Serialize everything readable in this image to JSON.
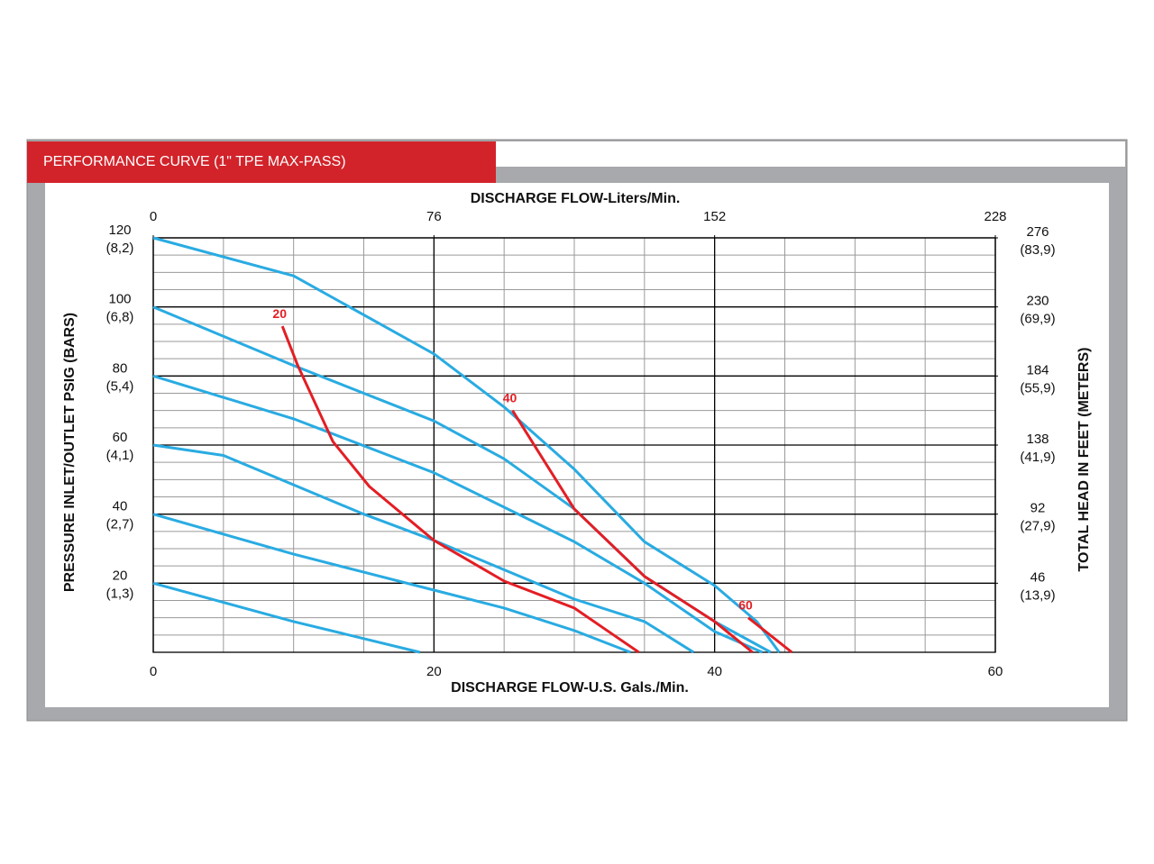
{
  "chart_data": {
    "type": "line",
    "title": "PERFORMANCE CURVE (1\" TPE MAX-PASS)",
    "x_label": "DISCHARGE FLOW-U.S. Gals./Min.",
    "x2_label": "DISCHARGE FLOW-Liters/Min.",
    "y_label": "PRESSURE INLET/OUTLET PSIG (BARS)",
    "y2_label": "TOTAL HEAD IN FEET (METERS)",
    "xlim": [
      0,
      60
    ],
    "xticks": [
      0,
      20,
      40,
      60
    ],
    "x_minor_ticks": [
      5,
      10,
      15,
      25,
      30,
      35,
      45,
      50,
      55
    ],
    "x2lim": [
      0,
      228
    ],
    "x2ticks": [
      0,
      76,
      152,
      228
    ],
    "ylim": [
      0,
      120
    ],
    "yticks": [
      {
        "value": 20,
        "label": "20",
        "metric_label": "(1,3)"
      },
      {
        "value": 40,
        "label": "40",
        "metric_label": "(2,7)"
      },
      {
        "value": 60,
        "label": "60",
        "metric_label": "(4,1)"
      },
      {
        "value": 80,
        "label": "80",
        "metric_label": "(5,4)"
      },
      {
        "value": 100,
        "label": "100",
        "metric_label": "(6,8)"
      },
      {
        "value": 120,
        "label": "120",
        "metric_label": "(8,2)"
      }
    ],
    "y_minor_ticks": [
      5,
      10,
      15,
      25,
      30,
      35,
      45,
      50,
      55,
      65,
      70,
      75,
      85,
      90,
      95,
      105,
      110,
      115
    ],
    "y2lim": [
      0,
      276
    ],
    "y2ticks": [
      {
        "value": 46,
        "label": "46",
        "metric_label": "(13,9)"
      },
      {
        "value": 92,
        "label": "92",
        "metric_label": "(27,9)"
      },
      {
        "value": 138,
        "label": "138",
        "metric_label": "(41,9)"
      },
      {
        "value": 184,
        "label": "184",
        "metric_label": "(55,9)"
      },
      {
        "value": 230,
        "label": "230",
        "metric_label": "(69,9)"
      },
      {
        "value": 276,
        "label": "276",
        "metric_label": "(83,9)"
      }
    ],
    "grid": true,
    "series": [
      {
        "color": "#29abe2",
        "x": [
          0,
          10,
          20,
          25,
          30,
          35,
          40,
          43,
          44.6
        ],
        "values": [
          120,
          109,
          86.4,
          71,
          53,
          32,
          19.3,
          8.9,
          0
        ]
      },
      {
        "color": "#29abe2",
        "x": [
          0,
          10,
          20,
          25,
          30,
          35,
          40,
          44
        ],
        "values": [
          100,
          83,
          67,
          56,
          41.5,
          22,
          8.9,
          0
        ]
      },
      {
        "color": "#29abe2",
        "x": [
          0,
          10,
          20,
          30,
          35,
          40,
          43.4
        ],
        "values": [
          80,
          67.6,
          52,
          32,
          20,
          6,
          0
        ]
      },
      {
        "color": "#29abe2",
        "x": [
          0,
          5,
          15,
          20,
          30,
          35,
          38.5
        ],
        "values": [
          60,
          57,
          40,
          32.4,
          15.4,
          8.9,
          0
        ]
      },
      {
        "color": "#29abe2",
        "x": [
          0,
          10,
          20,
          25,
          30,
          34
        ],
        "values": [
          40,
          28.4,
          18,
          12.8,
          6.3,
          0
        ]
      },
      {
        "color": "#29abe2",
        "x": [
          0,
          10,
          19
        ],
        "values": [
          20,
          8.9,
          0
        ]
      },
      {
        "name": "20",
        "color": "#e31e24",
        "x": [
          9.2,
          10.3,
          12.8,
          15.4,
          20,
          25,
          30,
          32.8,
          34.6
        ],
        "values": [
          94.4,
          83,
          61,
          48,
          32.4,
          20.6,
          12.8,
          5,
          0
        ]
      },
      {
        "name": "40",
        "color": "#e31e24",
        "x": [
          25.6,
          30,
          35,
          40,
          42.7
        ],
        "values": [
          70,
          41.5,
          22,
          8.9,
          0
        ]
      },
      {
        "name": "60",
        "color": "#e31e24",
        "x": [
          42.4,
          45.5
        ],
        "values": [
          10,
          0
        ]
      }
    ]
  }
}
